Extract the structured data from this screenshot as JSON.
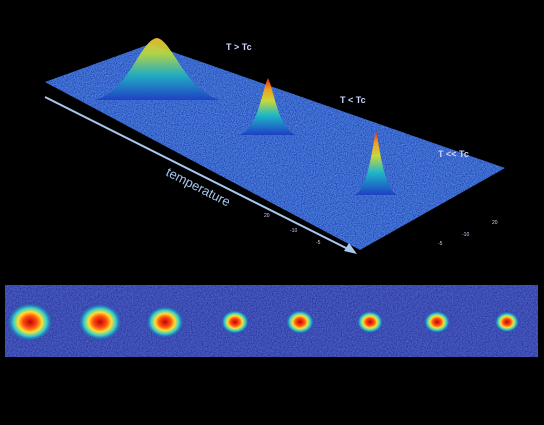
{
  "labels": [
    "T > Tc",
    "T < Tc",
    "T << Tc"
  ],
  "axis_label": "temperature",
  "tick_labels": [
    "20",
    "-10",
    "-5",
    "20",
    "-10",
    "-5"
  ]
}
